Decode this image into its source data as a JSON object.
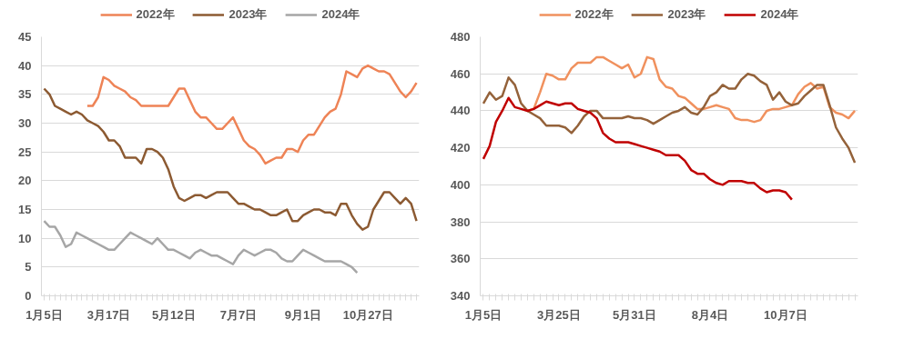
{
  "chart_data": [
    {
      "type": "line",
      "categories": [
        "1月5日",
        null,
        null,
        null,
        null,
        null,
        null,
        null,
        null,
        null,
        null,
        null,
        "3月17日",
        null,
        null,
        null,
        null,
        null,
        null,
        null,
        null,
        null,
        null,
        null,
        "5月12日",
        null,
        null,
        null,
        null,
        null,
        null,
        null,
        null,
        null,
        null,
        null,
        "7月7日",
        null,
        null,
        null,
        null,
        null,
        null,
        null,
        null,
        null,
        null,
        null,
        "9月1日",
        null,
        null,
        null,
        null,
        null,
        null,
        null,
        null,
        null,
        null,
        null,
        "10月27日",
        null,
        null,
        null,
        null,
        null,
        null,
        null,
        null,
        null
      ],
      "series": [
        {
          "name": "2022年",
          "color": "#ee8356",
          "values": [
            null,
            null,
            null,
            null,
            null,
            null,
            null,
            null,
            33,
            33,
            34.5,
            38,
            37.5,
            36.5,
            36,
            35.5,
            34.5,
            34,
            33,
            33,
            33,
            33,
            33,
            33,
            34.5,
            36,
            36,
            34,
            32,
            31,
            31,
            30,
            29,
            29,
            30,
            31,
            29,
            27,
            26,
            25.5,
            24.5,
            23,
            23.5,
            24,
            24,
            25.5,
            25.5,
            25,
            27,
            28,
            28,
            29.5,
            31,
            32,
            32.5,
            35,
            39,
            38.5,
            38,
            39.5,
            40,
            39.5,
            39,
            39,
            38.5,
            37,
            35.5,
            34.5,
            35.5,
            37
          ]
        },
        {
          "name": "2023年",
          "color": "#8c5a32",
          "values": [
            36,
            35,
            33,
            32.5,
            32,
            31.5,
            32,
            31.5,
            30.5,
            30,
            29.5,
            28.5,
            27,
            27,
            26,
            24,
            24,
            24,
            23,
            25.5,
            25.5,
            25,
            24,
            22,
            19,
            17,
            16.5,
            17,
            17.5,
            17.5,
            17,
            17.5,
            18,
            18,
            18,
            17,
            16,
            16,
            15.5,
            15,
            15,
            14.5,
            14,
            14,
            14.5,
            15,
            13,
            13,
            14,
            14.5,
            15,
            15,
            14.5,
            14.5,
            14,
            16,
            16,
            14,
            12.5,
            11.5,
            12,
            15,
            16.5,
            18,
            18,
            17,
            16,
            17,
            16,
            13
          ]
        },
        {
          "name": "2024年",
          "color": "#a6a6a6",
          "values": [
            13,
            12,
            12,
            10.5,
            8.5,
            9,
            11,
            10.5,
            10,
            9.5,
            9,
            8.5,
            8,
            8,
            9,
            10,
            11,
            10.5,
            10,
            9.5,
            9,
            10,
            9,
            8,
            8,
            7.5,
            7,
            6.5,
            7.5,
            8,
            7.5,
            7,
            7,
            6.5,
            6,
            5.5,
            7,
            8,
            7.5,
            7,
            7.5,
            8,
            8,
            7.5,
            6.5,
            6,
            6,
            7,
            8,
            7.5,
            7,
            6.5,
            6,
            6,
            6,
            6,
            5.5,
            5,
            4,
            null,
            null,
            null,
            null,
            null,
            null,
            null,
            null,
            null,
            null,
            null
          ]
        }
      ],
      "ylim": [
        0,
        45
      ],
      "yticks": [
        0,
        5,
        10,
        15,
        20,
        25,
        30,
        35,
        40,
        45
      ],
      "grid": "y",
      "legend": "top"
    },
    {
      "type": "line",
      "categories": [
        "1月5日",
        null,
        null,
        null,
        null,
        null,
        null,
        null,
        null,
        null,
        null,
        null,
        "3月25日",
        null,
        null,
        null,
        null,
        null,
        null,
        null,
        null,
        null,
        null,
        null,
        "5月31日",
        null,
        null,
        null,
        null,
        null,
        null,
        null,
        null,
        null,
        null,
        null,
        "8月4日",
        null,
        null,
        null,
        null,
        null,
        null,
        null,
        null,
        null,
        null,
        null,
        "10月7日",
        null,
        null,
        null,
        null,
        null,
        null,
        null,
        null,
        null,
        null,
        null
      ],
      "series": [
        {
          "name": "2022年",
          "color": "#f0915e",
          "values": [
            null,
            null,
            null,
            null,
            null,
            null,
            null,
            440,
            441,
            450,
            460,
            459,
            457,
            457,
            463,
            466,
            466,
            466,
            469,
            469,
            467,
            465,
            463,
            465,
            458,
            460,
            469,
            468,
            457,
            453,
            452,
            448,
            447,
            444,
            441,
            441,
            442,
            443,
            442,
            441,
            436,
            435,
            435,
            434,
            435,
            440,
            441,
            441,
            442,
            443,
            449,
            453,
            455,
            452,
            453,
            442,
            439,
            438,
            436,
            440
          ]
        },
        {
          "name": "2023年",
          "color": "#94623a",
          "values": [
            444,
            450,
            446,
            448,
            458,
            454,
            444,
            440,
            438,
            436,
            432,
            432,
            432,
            431,
            428,
            432,
            437,
            440,
            440,
            436,
            436,
            436,
            436,
            437,
            436,
            436,
            435,
            433,
            435,
            437,
            439,
            440,
            442,
            439,
            438,
            442,
            448,
            450,
            454,
            452,
            452,
            457,
            460,
            459,
            456,
            454,
            446,
            450,
            445,
            443,
            444,
            448,
            451,
            454,
            454,
            443,
            431,
            425,
            420,
            412
          ]
        },
        {
          "name": "2024年",
          "color": "#c00000",
          "values": [
            414,
            421,
            434,
            440,
            447,
            442,
            441,
            440,
            441,
            443,
            445,
            444,
            443,
            444,
            444,
            441,
            440,
            439,
            436,
            428,
            425,
            423,
            423,
            423,
            422,
            421,
            420,
            419,
            418,
            416,
            416,
            416,
            413,
            408,
            406,
            406,
            403,
            401,
            400,
            402,
            402,
            402,
            401,
            401,
            398,
            396,
            397,
            397,
            396,
            392,
            null,
            null,
            null,
            null,
            null,
            null,
            null,
            null,
            null,
            null
          ]
        }
      ],
      "ylim": [
        340,
        480
      ],
      "yticks": [
        340,
        360,
        380,
        400,
        420,
        440,
        460,
        480
      ],
      "grid": "y",
      "legend": "top"
    }
  ]
}
